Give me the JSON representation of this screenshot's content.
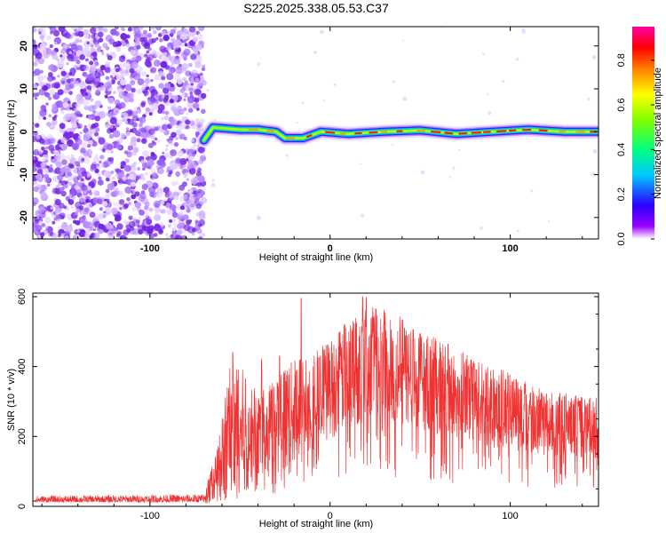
{
  "title": "S225.2025.338.05.53.C37",
  "colors": {
    "snr_line": "#f03232",
    "scatter_purple": "#8a2be2",
    "axis": "#000000"
  },
  "chart_data": [
    {
      "type": "heatmap",
      "name": "spectrogram",
      "xlabel": "Height of straight line (km)",
      "ylabel": "Frequency (Hz)",
      "xlim": [
        -165,
        149
      ],
      "ylim": [
        -25,
        24.5
      ],
      "x_ticks": [
        -100,
        0,
        100
      ],
      "y_ticks": [
        -20,
        -10,
        0,
        10,
        20
      ],
      "noise_region_x": [
        -165,
        -70
      ],
      "signal_start_x": -70,
      "signal_freq_hz": 0,
      "signal_track": [
        {
          "x": -70,
          "y": -2
        },
        {
          "x": -65,
          "y": 1
        },
        {
          "x": -50,
          "y": 0.5
        },
        {
          "x": -40,
          "y": 0.5
        },
        {
          "x": -30,
          "y": 0
        },
        {
          "x": -25,
          "y": -1.5
        },
        {
          "x": -15,
          "y": -1.5
        },
        {
          "x": -5,
          "y": 0
        },
        {
          "x": 10,
          "y": -0.5
        },
        {
          "x": 30,
          "y": 0
        },
        {
          "x": 50,
          "y": 0.3
        },
        {
          "x": 70,
          "y": -0.5
        },
        {
          "x": 90,
          "y": 0
        },
        {
          "x": 110,
          "y": 0.5
        },
        {
          "x": 130,
          "y": 0
        },
        {
          "x": 149,
          "y": 0
        }
      ]
    },
    {
      "type": "colorbar",
      "name": "spectral-amplitude-colorbar",
      "label": "Normalized spectral amplitude",
      "range": [
        0,
        0.95
      ],
      "ticks": [
        "0.0",
        "0.2",
        "0.4",
        "0.6",
        "0.8"
      ],
      "tick_values": [
        0.0,
        0.2,
        0.4,
        0.6,
        0.8
      ]
    },
    {
      "type": "line",
      "name": "snr",
      "xlabel": "Height of straight line (km)",
      "ylabel": "SNR (10 * v/v)",
      "xlim": [
        -165,
        149
      ],
      "ylim": [
        0,
        610
      ],
      "x_ticks": [
        -100,
        0,
        100
      ],
      "y_ticks": [
        0,
        200,
        400,
        600
      ],
      "envelope": [
        {
          "x": -165,
          "base": 12,
          "peak": 30
        },
        {
          "x": -70,
          "base": 12,
          "peak": 35
        },
        {
          "x": -62,
          "base": 40,
          "peak": 180
        },
        {
          "x": -55,
          "base": 60,
          "peak": 440
        },
        {
          "x": -40,
          "base": 90,
          "peak": 330
        },
        {
          "x": -20,
          "base": 150,
          "peak": 420
        },
        {
          "x": 0,
          "base": 220,
          "peak": 480
        },
        {
          "x": 15,
          "base": 260,
          "peak": 560
        },
        {
          "x": 25,
          "base": 280,
          "peak": 600
        },
        {
          "x": 40,
          "base": 260,
          "peak": 540
        },
        {
          "x": 60,
          "base": 230,
          "peak": 480
        },
        {
          "x": 80,
          "base": 200,
          "peak": 430
        },
        {
          "x": 100,
          "base": 180,
          "peak": 380
        },
        {
          "x": 120,
          "base": 160,
          "peak": 330
        },
        {
          "x": 149,
          "base": 150,
          "peak": 310
        }
      ],
      "spikes": [
        {
          "x": -54,
          "y": 440
        },
        {
          "x": -38,
          "y": 420
        },
        {
          "x": -28,
          "y": 430
        },
        {
          "x": -16,
          "y": 595
        },
        {
          "x": 8,
          "y": 520
        },
        {
          "x": 18,
          "y": 600
        },
        {
          "x": 20,
          "y": 598
        }
      ]
    }
  ]
}
